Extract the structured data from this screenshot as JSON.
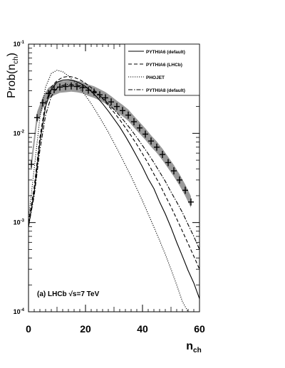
{
  "chart_data": {
    "type": "line",
    "xlabel": "n",
    "xlabel_sub": "ch",
    "ylabel": "Prob(n",
    "ylabel_sub": "ch",
    "ylabel_close": ")",
    "xlim": [
      0,
      60
    ],
    "ylim": [
      0.0001,
      0.1
    ],
    "yscale": "log",
    "xticks": [
      "0",
      "20",
      "40",
      "60"
    ],
    "yticks": [
      {
        "value": 0.1,
        "base": "10",
        "exp": "-1"
      },
      {
        "value": 0.01,
        "base": "10",
        "exp": "-2"
      },
      {
        "value": 0.001,
        "base": "10",
        "exp": "-3"
      },
      {
        "value": 0.0001,
        "base": "10",
        "exp": "-4"
      }
    ],
    "annotation": "(a) LHCb √s=7 TeV",
    "legend_position": "top-right",
    "data": {
      "x": [
        1,
        3,
        5,
        7,
        9,
        11,
        13,
        15,
        17,
        19,
        21,
        23,
        25,
        27,
        29,
        31,
        33,
        35,
        37,
        39,
        41,
        43,
        45,
        47,
        49,
        51,
        53,
        55,
        57
      ],
      "y": [
        0.0045,
        0.015,
        0.022,
        0.028,
        0.031,
        0.033,
        0.0335,
        0.034,
        0.0335,
        0.0325,
        0.0305,
        0.029,
        0.027,
        0.025,
        0.0225,
        0.02,
        0.018,
        0.016,
        0.0135,
        0.0115,
        0.0098,
        0.0082,
        0.007,
        0.0058,
        0.0047,
        0.0038,
        0.003,
        0.0023,
        0.0017
      ],
      "band": 0.16
    },
    "series": [
      {
        "name": "PYTHIA6 (default)",
        "style": "solid",
        "x": [
          0,
          2,
          4,
          6,
          8,
          10,
          12,
          14,
          16,
          18,
          20,
          22,
          24,
          26,
          28,
          30,
          32,
          34,
          36,
          38,
          40,
          42,
          44,
          46,
          48,
          50,
          52,
          54,
          56,
          58,
          60
        ],
        "y": [
          0.0009,
          0.0022,
          0.008,
          0.02,
          0.031,
          0.0375,
          0.0395,
          0.04,
          0.039,
          0.0365,
          0.0335,
          0.0295,
          0.0255,
          0.0215,
          0.0178,
          0.0145,
          0.0118,
          0.0093,
          0.0072,
          0.0055,
          0.0042,
          0.0031,
          0.0024,
          0.0017,
          0.00125,
          0.00088,
          0.0006,
          0.00042,
          0.00029,
          0.00021,
          0.00014
        ]
      },
      {
        "name": "PYTHIA6 (LHCb)",
        "style": "dashed",
        "x": [
          0,
          2,
          4,
          6,
          8,
          10,
          12,
          14,
          16,
          18,
          20,
          22,
          24,
          26,
          28,
          30,
          32,
          34,
          36,
          38,
          40,
          42,
          44,
          46,
          48,
          50,
          52,
          54,
          56,
          58,
          60
        ],
        "y": [
          0.001,
          0.0025,
          0.009,
          0.022,
          0.033,
          0.039,
          0.0425,
          0.0435,
          0.0425,
          0.04,
          0.0365,
          0.0325,
          0.0285,
          0.0245,
          0.0205,
          0.0172,
          0.0142,
          0.0116,
          0.0094,
          0.0075,
          0.0059,
          0.0046,
          0.0035,
          0.0027,
          0.002,
          0.0015,
          0.0011,
          0.0008,
          0.00058,
          0.00042,
          0.0003
        ]
      },
      {
        "name": "PHOJET",
        "style": "dotted",
        "x": [
          0,
          2,
          4,
          6,
          8,
          10,
          12,
          14,
          16,
          18,
          20,
          22,
          24,
          26,
          28,
          30,
          32,
          34,
          36,
          38,
          40,
          42,
          44,
          46,
          48,
          50,
          52,
          54,
          56,
          58,
          60
        ],
        "y": [
          0.0011,
          0.004,
          0.015,
          0.033,
          0.047,
          0.051,
          0.049,
          0.044,
          0.038,
          0.032,
          0.0265,
          0.0215,
          0.017,
          0.0133,
          0.0103,
          0.0078,
          0.0059,
          0.0044,
          0.0033,
          0.0024,
          0.00175,
          0.00125,
          0.00089,
          0.00063,
          0.00044,
          0.0003,
          0.0002,
          0.00013,
          0.0001,
          0.0001,
          0.0001
        ]
      },
      {
        "name": "PYTHIA8 (default)",
        "style": "dashdot",
        "x": [
          0,
          2,
          4,
          6,
          8,
          10,
          12,
          14,
          16,
          18,
          20,
          22,
          24,
          26,
          28,
          30,
          32,
          34,
          36,
          38,
          40,
          42,
          44,
          46,
          48,
          50,
          52,
          54,
          56,
          58,
          60
        ],
        "y": [
          0.0009,
          0.002,
          0.0065,
          0.016,
          0.026,
          0.032,
          0.0345,
          0.0355,
          0.0352,
          0.0342,
          0.0328,
          0.0305,
          0.0278,
          0.025,
          0.0215,
          0.0185,
          0.0158,
          0.0132,
          0.011,
          0.009,
          0.0073,
          0.0059,
          0.0047,
          0.0037,
          0.0029,
          0.0022,
          0.0017,
          0.0013,
          0.00095,
          0.0007,
          0.0005
        ]
      }
    ]
  }
}
